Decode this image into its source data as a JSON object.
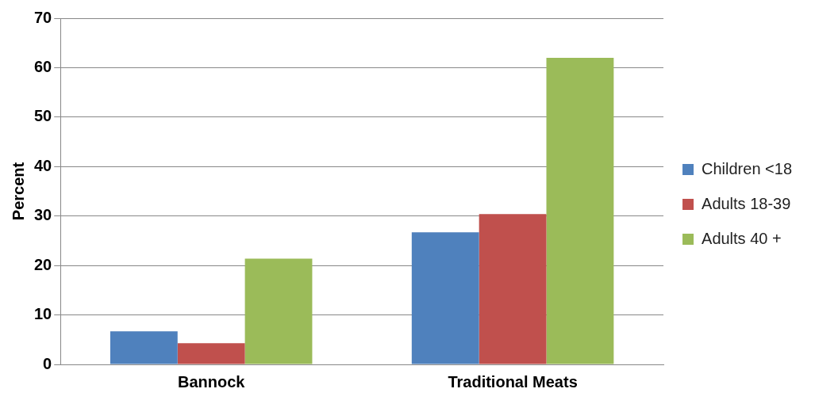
{
  "chart_data": {
    "type": "bar",
    "ylabel": "Percent",
    "categories": [
      "Bannock",
      "Traditional Meats"
    ],
    "series": [
      {
        "name": "Children <18",
        "color": "#4f81bd",
        "values": [
          6.7,
          26.7
        ]
      },
      {
        "name": "Adults 18-39",
        "color": "#c0504d",
        "values": [
          4.3,
          30.4
        ]
      },
      {
        "name": "Adults 40 +",
        "color": "#9bbb59",
        "values": [
          21.4,
          62.0
        ]
      }
    ],
    "ylim": [
      0,
      70
    ],
    "yticks": [
      0,
      10,
      20,
      30,
      40,
      50,
      60,
      70
    ],
    "grid": "y",
    "legend": "right"
  }
}
